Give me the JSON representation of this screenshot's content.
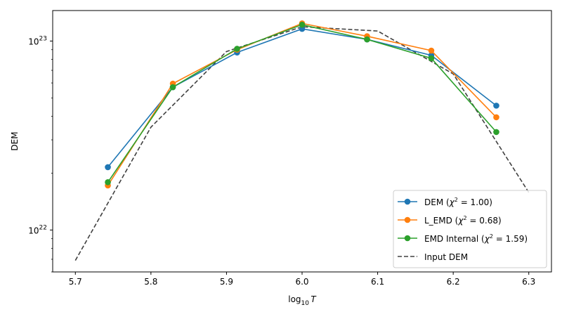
{
  "chart_data": {
    "type": "line",
    "title": "",
    "xlabel": "log10 T",
    "xlabel_parts": {
      "base": "log",
      "sub": "10",
      "var": "T"
    },
    "ylabel": "DEM",
    "xlim": [
      5.67,
      6.33
    ],
    "ylim": [
      6e+21,
      1.45e+23
    ],
    "yscale": "log",
    "xticks": [
      5.7,
      5.8,
      5.9,
      6.0,
      6.1,
      6.2,
      6.3
    ],
    "xtick_labels": [
      "5.7",
      "5.8",
      "5.9",
      "6.0",
      "6.1",
      "6.2",
      "6.3"
    ],
    "yticks": [
      1e+22,
      1e+23
    ],
    "ytick_labels": [
      {
        "base": "10",
        "exp": "22"
      },
      {
        "base": "10",
        "exp": "23"
      }
    ],
    "grid": false,
    "legend_position": "lower-right",
    "series": [
      {
        "name": "DEM (χ² = 1.00)",
        "label_parts": {
          "pre": "DEM (",
          "chi": "χ",
          "sup": "2",
          "post": " = 1.00)"
        },
        "color": "#1f77b4",
        "style": "line-marker",
        "x": [
          5.743,
          5.829,
          5.914,
          6.0,
          6.086,
          6.171,
          6.257
        ],
        "y": [
          2.15e+22,
          5.7e+22,
          8.7e+22,
          1.16e+23,
          1.02e+23,
          8.4e+22,
          4.55e+22
        ]
      },
      {
        "name": "L_EMD (χ² = 0.68)",
        "label_parts": {
          "pre": "L_EMD (",
          "chi": "χ",
          "sup": "2",
          "post": " = 0.68)"
        },
        "color": "#ff7f0e",
        "style": "line-marker",
        "x": [
          5.743,
          5.829,
          5.914,
          6.0,
          6.086,
          6.171,
          6.257
        ],
        "y": [
          1.72e+22,
          5.95e+22,
          9e+22,
          1.24e+23,
          1.06e+23,
          8.9e+22,
          3.95e+22
        ]
      },
      {
        "name": "EMD Internal (χ² = 1.59)",
        "label_parts": {
          "pre": "EMD Internal (",
          "chi": "χ",
          "sup": "2",
          "post": " = 1.59)"
        },
        "color": "#2ca02c",
        "style": "line-marker",
        "x": [
          5.743,
          5.829,
          5.914,
          6.0,
          6.086,
          6.171,
          6.257
        ],
        "y": [
          1.79e+22,
          5.7e+22,
          9.1e+22,
          1.22e+23,
          1.02e+23,
          8.1e+22,
          3.3e+22
        ]
      },
      {
        "name": "Input DEM",
        "label_parts": {
          "pre": "Input DEM",
          "chi": "",
          "sup": "",
          "post": ""
        },
        "color": "#404040",
        "style": "dashed",
        "x": [
          5.7,
          5.8,
          5.9,
          6.0,
          6.1,
          6.2,
          6.3
        ],
        "y": [
          6.9e+21,
          3.5e+22,
          8.8e+22,
          1.19e+23,
          1.13e+23,
          6.7e+22,
          1.58e+22
        ]
      }
    ]
  }
}
